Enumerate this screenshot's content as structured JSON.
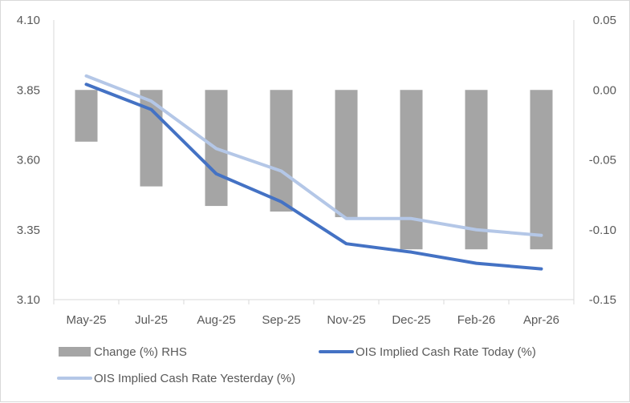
{
  "chart_data": {
    "type": "bar+line",
    "categories": [
      "May-25",
      "Jul-25",
      "Aug-25",
      "Sep-25",
      "Nov-25",
      "Dec-25",
      "Feb-26",
      "Apr-26"
    ],
    "left_axis": {
      "ylim": [
        3.1,
        4.1
      ],
      "ticks": [
        "4.10",
        "3.85",
        "3.60",
        "3.35",
        "3.10"
      ],
      "tick_values": [
        4.1,
        3.85,
        3.6,
        3.35,
        3.1
      ]
    },
    "right_axis": {
      "ylim": [
        -0.15,
        0.05
      ],
      "ticks": [
        "0.05",
        "0.00",
        "-0.05",
        "-0.10",
        "-0.15"
      ],
      "tick_values": [
        0.05,
        0.0,
        -0.05,
        -0.1,
        -0.15
      ]
    },
    "series": [
      {
        "name": "Change (%) RHS",
        "kind": "bar",
        "axis": "right",
        "color": "#a5a5a5",
        "values": [
          -0.037,
          -0.069,
          -0.083,
          -0.087,
          -0.091,
          -0.114,
          -0.114,
          -0.114
        ]
      },
      {
        "name": "OIS Implied Cash Rate Today (%)",
        "kind": "line",
        "axis": "left",
        "color": "#4472c4",
        "values": [
          3.87,
          3.78,
          3.55,
          3.45,
          3.3,
          3.27,
          3.23,
          3.21
        ]
      },
      {
        "name": "OIS Implied Cash Rate Yesterday (%)",
        "kind": "line",
        "axis": "left",
        "color": "#b4c7e7",
        "values": [
          3.9,
          3.81,
          3.64,
          3.56,
          3.39,
          3.39,
          3.35,
          3.33
        ]
      }
    ],
    "legend": [
      "Change (%) RHS",
      "OIS Implied Cash Rate Today (%)",
      "OIS Implied Cash Rate Yesterday (%)"
    ],
    "legend_position": "bottom",
    "grid": false
  }
}
